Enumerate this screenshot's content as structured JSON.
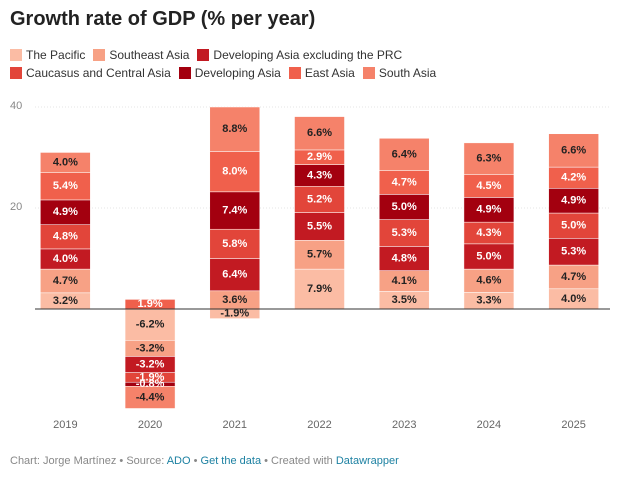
{
  "chart_data": {
    "type": "stacked_bar",
    "title": "Growth rate of GDP (% per year)",
    "categories": [
      "2019",
      "2020",
      "2021",
      "2022",
      "2023",
      "2024",
      "2025"
    ],
    "series": [
      {
        "name": "The Pacific",
        "color": "#fbbca4",
        "values": [
          3.2,
          -6.2,
          -1.9,
          7.9,
          3.5,
          3.3,
          4.0
        ],
        "value_labels": [
          "3.2%",
          "-6.2%",
          "-1.9%",
          "7.9%",
          "3.5%",
          "3.3%",
          "4.0%"
        ]
      },
      {
        "name": "Southeast Asia",
        "color": "#f7a185",
        "values": [
          4.7,
          -3.2,
          3.6,
          5.7,
          4.1,
          4.6,
          4.7
        ],
        "value_labels": [
          "4.7%",
          "-3.2%",
          "3.6%",
          "5.7%",
          "4.1%",
          "4.6%",
          "4.7%"
        ]
      },
      {
        "name": "Developing Asia excluding the PRC",
        "color": "#c21a22",
        "values": [
          4.0,
          -3.2,
          6.4,
          5.5,
          4.8,
          5.0,
          5.3
        ],
        "value_labels": [
          "4.0%",
          "-3.2%",
          "6.4%",
          "5.5%",
          "4.8%",
          "5.0%",
          "5.3%"
        ]
      },
      {
        "name": "Caucasus and Central Asia",
        "color": "#e2453a",
        "values": [
          4.8,
          -1.9,
          5.8,
          5.2,
          5.3,
          4.3,
          5.0
        ],
        "value_labels": [
          "4.8%",
          "-1.9%",
          "5.8%",
          "5.2%",
          "5.3%",
          "4.3%",
          "5.0%"
        ]
      },
      {
        "name": "Developing Asia",
        "color": "#a3000f",
        "values": [
          4.9,
          -0.8,
          7.4,
          4.3,
          5.0,
          4.9,
          4.9
        ],
        "value_labels": [
          "4.9%",
          "-0.8%",
          "7.4%",
          "4.3%",
          "5.0%",
          "4.9%",
          "4.9%"
        ]
      },
      {
        "name": "East Asia",
        "color": "#f0604c",
        "values": [
          5.4,
          1.9,
          8.0,
          2.9,
          4.7,
          4.5,
          4.2
        ],
        "value_labels": [
          "5.4%",
          "1.9%",
          "8.0%",
          "2.9%",
          "4.7%",
          "4.5%",
          "4.2%"
        ]
      },
      {
        "name": "South Asia",
        "color": "#f5826a",
        "values": [
          4.0,
          -4.4,
          8.8,
          6.6,
          6.4,
          6.3,
          6.6
        ],
        "value_labels": [
          "4.0%",
          "-4.4%",
          "8.8%",
          "6.6%",
          "6.4%",
          "6.3%",
          "6.6%"
        ]
      }
    ],
    "ylim": [
      -20,
      40
    ],
    "yticks": [
      20,
      40
    ],
    "grid": true,
    "footer": [
      "Chart: Jorge Martínez • Source: ",
      "ADO",
      " • ",
      "Get the data",
      " • Created with ",
      "Datawrapper"
    ]
  }
}
